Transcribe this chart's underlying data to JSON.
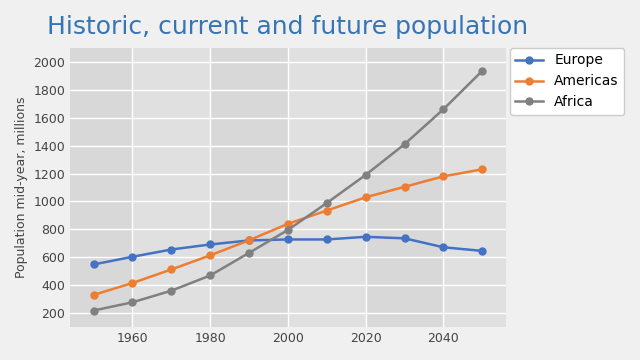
{
  "title": "Historic, current and future population",
  "ylabel": "Population mid-year, millions",
  "background_color": "#f0f0f0",
  "plot_bg_color": "#e8e8e8",
  "title_color": "#3575b5",
  "series": [
    {
      "name": "Europe",
      "color": "#4472c4",
      "x": [
        1950,
        1960,
        1970,
        1980,
        1990,
        2000,
        2010,
        2020,
        2030,
        2040,
        2050
      ],
      "y": [
        549,
        604,
        656,
        692,
        721,
        728,
        728,
        747,
        736,
        672,
        646
      ]
    },
    {
      "name": "Americas",
      "color": "#ed7d31",
      "x": [
        1950,
        1960,
        1970,
        1980,
        1990,
        2000,
        2010,
        2020,
        2030,
        2040,
        2050
      ],
      "y": [
        331,
        416,
        513,
        614,
        722,
        840,
        935,
        1030,
        1105,
        1180,
        1230
      ]
    },
    {
      "name": "Africa",
      "color": "#808080",
      "x": [
        1950,
        1960,
        1970,
        1980,
        1990,
        2000,
        2010,
        2020,
        2030,
        2040,
        2050
      ],
      "y": [
        219,
        278,
        361,
        470,
        632,
        796,
        989,
        1190,
        1410,
        1660,
        1935
      ]
    }
  ],
  "xlim": [
    1944,
    2056
  ],
  "ylim": [
    100,
    2100
  ],
  "yticks": [
    200,
    400,
    600,
    800,
    1000,
    1200,
    1400,
    1600,
    1800,
    2000
  ],
  "xticks": [
    1960,
    1980,
    2000,
    2020,
    2040
  ],
  "band_colors": [
    "#d8d8d8",
    "#e0e0e0"
  ],
  "grid_color": "#ffffff",
  "legend_fontsize": 10,
  "axis_fontsize": 9,
  "title_fontsize": 18
}
